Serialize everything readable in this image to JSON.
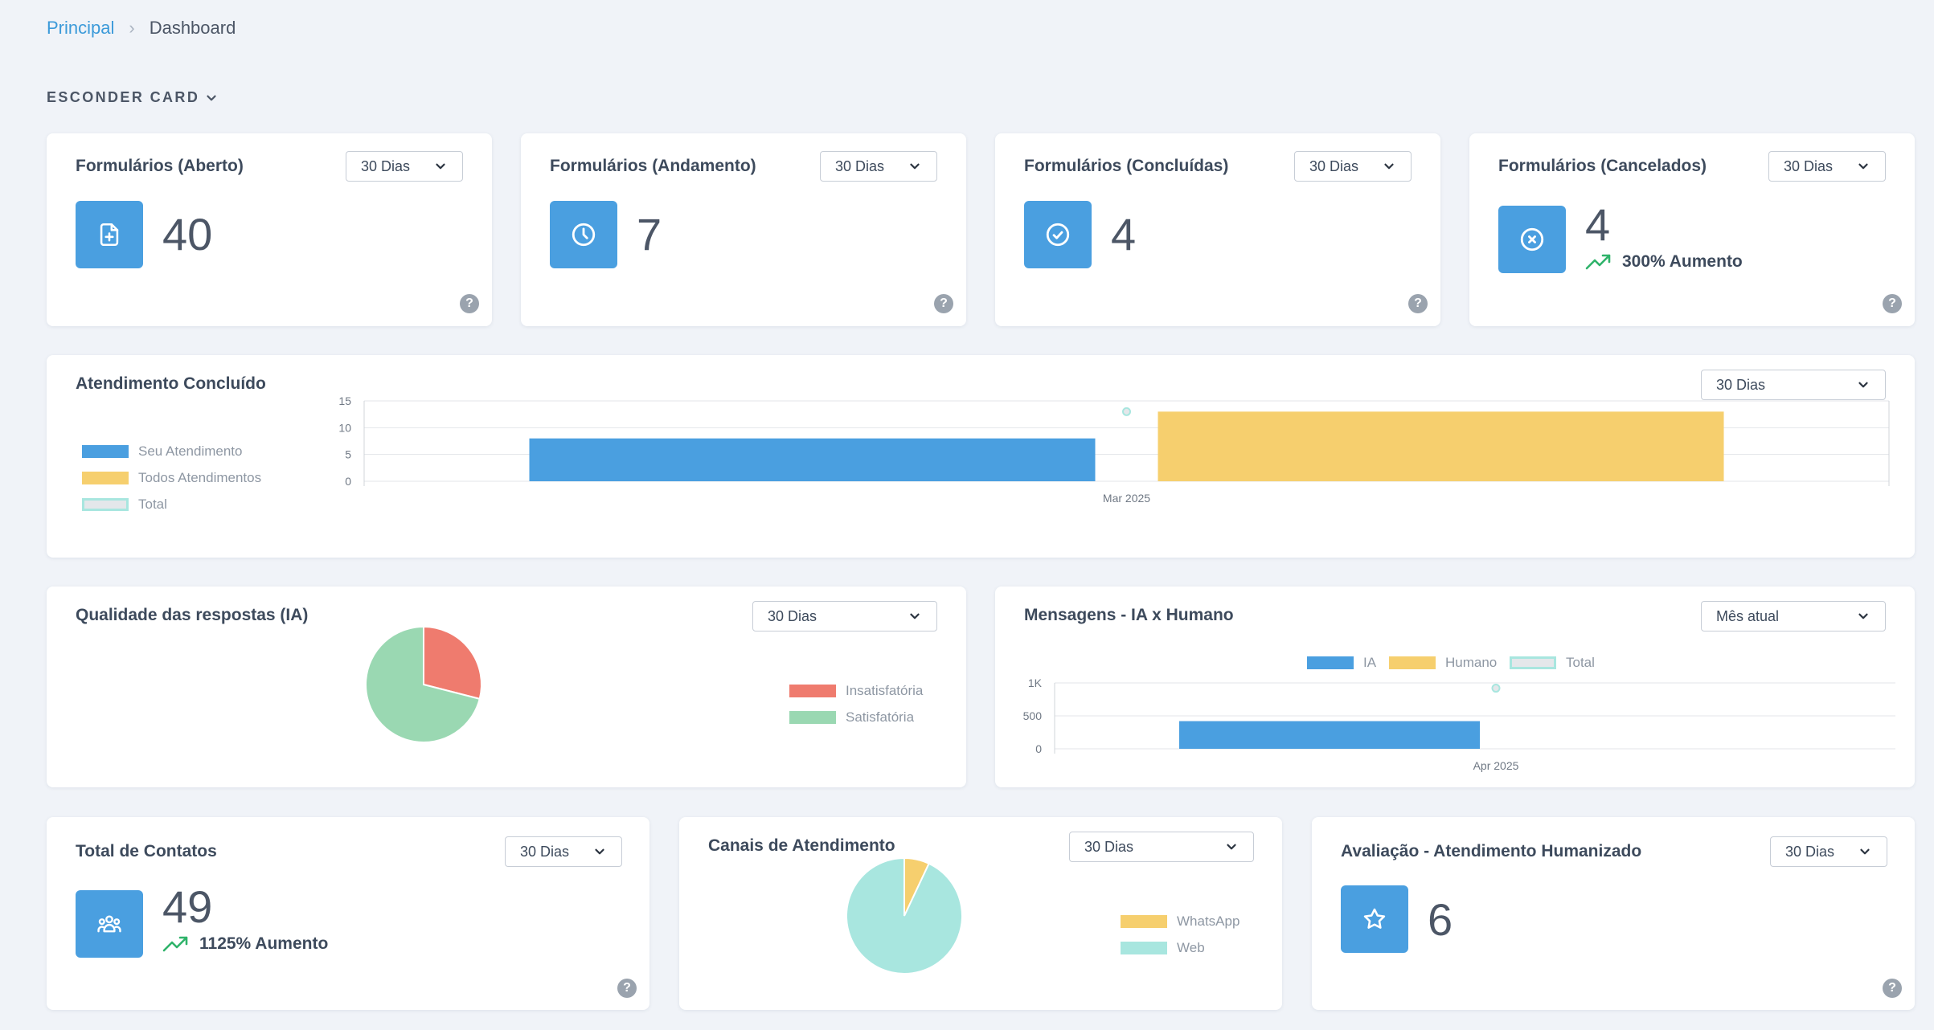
{
  "breadcrumb": {
    "home": "Principal",
    "current": "Dashboard"
  },
  "hide_card_label": "ESCONDER CARD",
  "colors": {
    "accent": "#4a9fe0",
    "yellow": "#f6cf6e",
    "teal": "#a8e6df",
    "red": "#ef7b6e",
    "green": "#9ad8b2",
    "trend_up": "#2fb36a"
  },
  "stat_cards": [
    {
      "title": "Formulários (Aberto)",
      "period": "30 Dias",
      "value": "40",
      "icon": "file-plus-icon"
    },
    {
      "title": "Formulários (Andamento)",
      "period": "30 Dias",
      "value": "7",
      "icon": "clock-icon"
    },
    {
      "title": "Formulários (Concluídas)",
      "period": "30 Dias",
      "value": "4",
      "icon": "check-circle-icon"
    },
    {
      "title": "Formulários (Cancelados)",
      "period": "30 Dias",
      "value": "4",
      "icon": "x-circle-icon",
      "trend": "300% Aumento"
    }
  ],
  "atendimento": {
    "title": "Atendimento Concluído",
    "period": "30 Dias",
    "legend": [
      "Seu Atendimento",
      "Todos Atendimentos",
      "Total"
    ]
  },
  "qualidade": {
    "title": "Qualidade das respostas (IA)",
    "period": "30 Dias",
    "legend": [
      "Insatisfatória",
      "Satisfatória"
    ]
  },
  "mensagens": {
    "title": "Mensagens - IA x Humano",
    "period": "Mês atual",
    "legend": [
      "IA",
      "Humano",
      "Total"
    ]
  },
  "contatos": {
    "title": "Total de Contatos",
    "period": "30 Dias",
    "value": "49",
    "trend": "1125% Aumento",
    "icon": "users-icon"
  },
  "canais": {
    "title": "Canais de Atendimento",
    "period": "30 Dias",
    "legend": [
      "WhatsApp",
      "Web"
    ]
  },
  "avaliacao": {
    "title": "Avaliação - Atendimento Humanizado",
    "period": "30 Dias",
    "value": "6",
    "icon": "star-icon"
  },
  "chart_data": [
    {
      "type": "bar",
      "title": "Atendimento Concluído",
      "categories": [
        "Mar 2025"
      ],
      "series": [
        {
          "name": "Seu Atendimento",
          "values": [
            8
          ]
        },
        {
          "name": "Todos Atendimentos",
          "values": [
            13
          ]
        },
        {
          "name": "Total",
          "values": [
            13
          ]
        }
      ],
      "yticks": [
        "0",
        "5",
        "10",
        "15"
      ],
      "ylim": [
        0,
        15
      ],
      "grid": true,
      "legend": "left"
    },
    {
      "type": "pie",
      "title": "Qualidade das respostas (IA)",
      "labels": [
        "Insatisfatória",
        "Satisfatória"
      ],
      "values": [
        29,
        71
      ],
      "legend": "right"
    },
    {
      "type": "bar",
      "title": "Mensagens - IA x Humano",
      "categories": [
        "Apr 2025"
      ],
      "series": [
        {
          "name": "IA",
          "values": [
            420
          ]
        },
        {
          "name": "Humano",
          "values": [
            0
          ]
        },
        {
          "name": "Total",
          "values": [
            920
          ]
        }
      ],
      "yticks": [
        "0",
        "500",
        "1K"
      ],
      "ylim": [
        0,
        1000
      ],
      "grid": true,
      "legend": "top"
    },
    {
      "type": "pie",
      "title": "Canais de Atendimento",
      "labels": [
        "WhatsApp",
        "Web"
      ],
      "values": [
        7,
        93
      ],
      "legend": "right"
    }
  ]
}
